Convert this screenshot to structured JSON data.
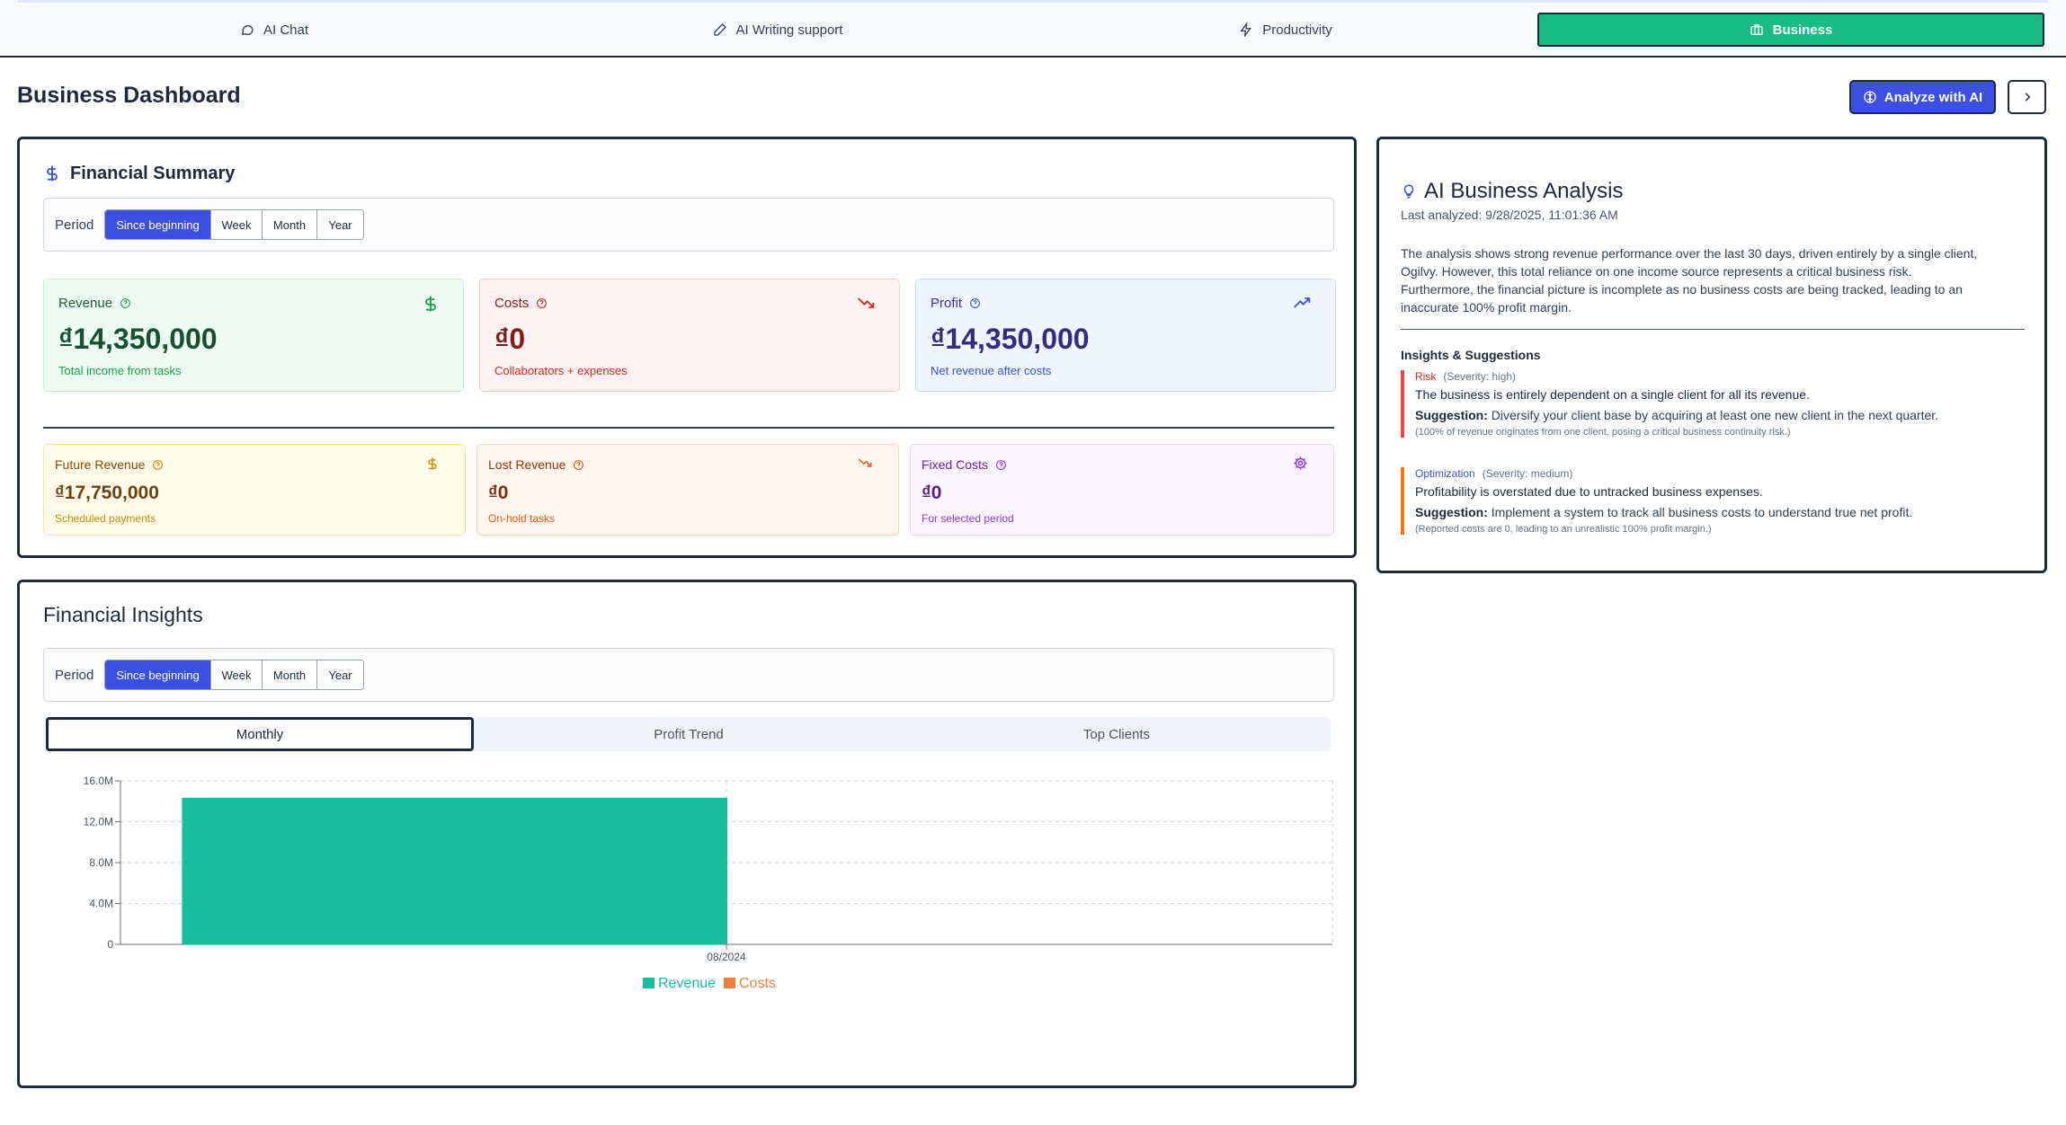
{
  "nav": {
    "tabs": [
      {
        "label": "AI Chat",
        "icon": "chat-bubble-icon"
      },
      {
        "label": "AI Writing support",
        "icon": "pencil-icon"
      },
      {
        "label": "Productivity",
        "icon": "lightning-icon"
      },
      {
        "label": "Business",
        "icon": "briefcase-icon",
        "active": true
      }
    ]
  },
  "header": {
    "title": "Business Dashboard",
    "analyze_label": "Analyze with AI"
  },
  "financial_summary": {
    "title": "Financial Summary",
    "period_label": "Period",
    "periods": [
      "Since beginning",
      "Week",
      "Month",
      "Year"
    ],
    "selected_period": "Since beginning",
    "revenue": {
      "label": "Revenue",
      "value": "₫14,350,000",
      "sub": "Total income from tasks"
    },
    "costs": {
      "label": "Costs",
      "value": "₫0",
      "sub": "Collaborators + expenses"
    },
    "profit": {
      "label": "Profit",
      "value": "₫14,350,000",
      "sub": "Net revenue after costs"
    },
    "future_revenue": {
      "label": "Future Revenue",
      "value": "₫17,750,000",
      "sub": "Scheduled payments"
    },
    "lost_revenue": {
      "label": "Lost Revenue",
      "value": "₫0",
      "sub": "On-hold tasks"
    },
    "fixed_costs": {
      "label": "Fixed Costs",
      "value": "₫0",
      "sub": "For selected period"
    }
  },
  "financial_insights": {
    "title": "Financial Insights",
    "period_label": "Period",
    "periods": [
      "Since beginning",
      "Week",
      "Month",
      "Year"
    ],
    "selected_period": "Since beginning",
    "chart_tabs": [
      "Monthly",
      "Profit Trend",
      "Top Clients"
    ],
    "active_chart_tab": "Monthly"
  },
  "chart_data": {
    "type": "bar",
    "title": "",
    "xlabel": "",
    "ylabel": "",
    "categories": [
      "08/2024"
    ],
    "series": [
      {
        "name": "Revenue",
        "values": [
          14350000
        ],
        "color": "#1abc9c"
      },
      {
        "name": "Costs",
        "values": [
          0
        ],
        "color": "#f07f3c"
      }
    ],
    "ylim": [
      0,
      16000000
    ],
    "yticks": [
      0,
      4000000,
      8000000,
      12000000,
      16000000
    ],
    "ytick_labels": [
      "0",
      "4.0M",
      "8.0M",
      "12.0M",
      "16.0M"
    ],
    "grid": true,
    "legend": "bottom"
  },
  "ai_analysis": {
    "title": "AI Business Analysis",
    "last_analyzed": "Last analyzed: 9/28/2025, 11:01:36 AM",
    "summary_lines": [
      "The analysis shows strong revenue performance over the last 30 days, driven entirely by a single client,",
      "Ogilvy. However, this total reliance on one income source represents a critical business risk.",
      "Furthermore, the financial picture is incomplete as no business costs are being tracked, leading to an",
      "inaccurate 100% profit margin."
    ],
    "insights_title": "Insights & Suggestions",
    "suggestion_label": "Suggestion:",
    "insights": [
      {
        "type": "Risk",
        "severity": "(Severity: high)",
        "text": "The business is entirely dependent on a single client for all its revenue.",
        "suggestion": "Diversify your client base by acquiring at least one new client in the next quarter.",
        "note": "(100% of revenue originates from one client, posing a critical business continuity risk.)",
        "color": "#ef4444"
      },
      {
        "type": "Optimization",
        "severity": "(Severity: medium)",
        "text": "Profitability is overstated due to untracked business expenses.",
        "suggestion": "Implement a system to track all business costs to understand true net profit.",
        "note": "(Reported costs are 0, leading to an unrealistic 100% profit margin.)",
        "color": "#f97316"
      }
    ]
  }
}
